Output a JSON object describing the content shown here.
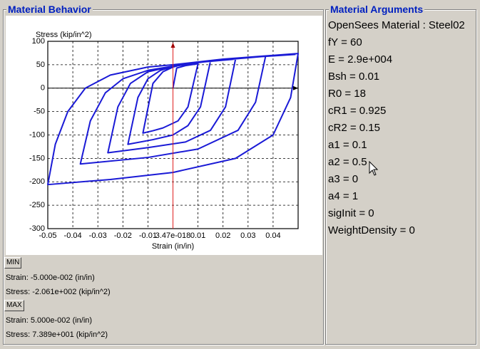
{
  "left_panel": {
    "title": "Material Behavior",
    "chart": {
      "type": "line",
      "y_label": "Stress (kip/in^2)",
      "x_label": "Strain (in/in)",
      "xlim": [
        -0.05,
        0.05
      ],
      "ylim": [
        -300,
        100
      ],
      "xticks": [
        -0.05,
        -0.04,
        -0.03,
        -0.02,
        -0.01,
        {
          "value": 3.47e-18,
          "label": "3.47e-018"
        },
        0.01,
        0.02,
        0.03,
        0.04
      ],
      "yticks": [
        -300,
        -250,
        -200,
        -150,
        -100,
        -50,
        0,
        50,
        100
      ],
      "grid": true,
      "color": "#1a1ad6",
      "x": [
        0,
        0.0015,
        0.005,
        0.01,
        0.006,
        0.002,
        -0.004,
        -0.008,
        -0.012,
        -0.008,
        -0.004,
        0,
        0.005,
        0.01,
        0.015,
        0.011,
        0.006,
        0,
        -0.008,
        -0.018,
        -0.014,
        -0.01,
        -0.005,
        0,
        0.01,
        0.025,
        0.021,
        0.015,
        0.005,
        -0.01,
        -0.026,
        -0.022,
        -0.017,
        -0.01,
        0,
        0.015,
        0.037,
        0.033,
        0.026,
        0.01,
        -0.01,
        -0.037,
        -0.033,
        -0.027,
        -0.02,
        -0.01,
        0,
        0.02,
        0.05,
        0.047,
        0.04,
        0.025,
        0,
        -0.025,
        -0.05,
        -0.047,
        -0.042,
        -0.035,
        -0.025,
        -0.01,
        0,
        0.02,
        0.049
      ],
      "values": [
        0,
        43,
        48,
        52,
        -40,
        -70,
        -85,
        -91,
        -96,
        10,
        35,
        45,
        52,
        56,
        58,
        -40,
        -80,
        -100,
        -110,
        -120,
        -20,
        20,
        38,
        46,
        55,
        62,
        -40,
        -90,
        -115,
        -127,
        -138,
        -40,
        10,
        35,
        47,
        58,
        68,
        -30,
        -90,
        -130,
        -148,
        -162,
        -70,
        -10,
        20,
        38,
        47,
        62,
        74,
        -20,
        -100,
        -150,
        -180,
        -195,
        -206,
        -120,
        -50,
        0,
        28,
        45,
        50,
        62,
        72
      ]
    },
    "min_button": "MIN",
    "min_strain": "Strain: -5.000e-002 (in/in)",
    "min_stress": "Stress: -2.061e+002 (kip/in^2)",
    "max_button": "MAX",
    "max_strain": "Strain: 5.000e-002 (in/in)",
    "max_stress": "Stress: 7.389e+001 (kip/in^2)"
  },
  "right_panel": {
    "title": "Material Arguments",
    "items": [
      "OpenSees Material : Steel02",
      "fY = 60",
      "E = 2.9e+004",
      "Bsh = 0.01",
      "R0 = 18",
      "cR1 = 0.925",
      "cR2 = 0.15",
      "a1 = 0.1",
      "a2 = 0.5",
      "a3 = 0",
      "a4 = 1",
      "sigInit = 0",
      "WeightDensity = 0"
    ]
  }
}
